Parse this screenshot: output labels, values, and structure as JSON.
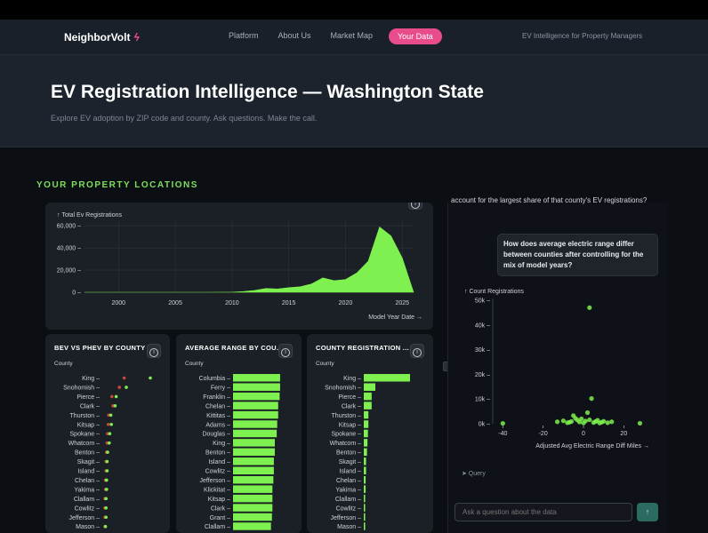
{
  "nav": {
    "brand": "NeighborVolt",
    "brand_icon": "lightning-bolt-icon",
    "links": [
      "Platform",
      "About Us",
      "Market Map"
    ],
    "active": "Your Data",
    "tagline": "EV Intelligence for Property Managers"
  },
  "hero": {
    "title": "EV Registration Intelligence — Washington State",
    "subtitle": "Explore EV adoption by ZIP code and county. Ask questions. Make the call."
  },
  "section_label": "YOUR PROPERTY LOCATIONS",
  "colors": {
    "accent_green": "#7ef04f",
    "accent_pink": "#e84c8b",
    "bev_red": "#c9463c",
    "phev_green": "#7ef04f",
    "send": "#2c6b5f"
  },
  "area_card": {
    "info_icon": "info-icon"
  },
  "bev_card": {
    "title": "BEV VS PHEV BY COUNTY",
    "axis_label": "County",
    "info_icon": "info-icon"
  },
  "range_card": {
    "title": "AVERAGE RANGE BY COU...",
    "axis_label": "County",
    "info_icon": "info-icon"
  },
  "count_card": {
    "title": "COUNTY REGISTRATION ...",
    "axis_label": "County",
    "info_icon": "info-icon"
  },
  "chat": {
    "prev_message": "account for the largest share of that county's EV registrations?",
    "question": "How does average electric range differ between counties after controlling for the mix of model years?",
    "query_link": "➤ Query",
    "input_placeholder": "Ask a question about the data",
    "send_icon": "arrow-up-icon"
  },
  "chart_data": [
    {
      "type": "area",
      "ylabel": "↑ Total Ev Registrations",
      "xlabel": "Model Year Date →",
      "x_ticks": [
        2000,
        2005,
        2010,
        2015,
        2020,
        2025
      ],
      "y_ticks": [
        0,
        20000,
        40000,
        60000
      ],
      "y_tick_labels": [
        "0",
        "20,000",
        "40,000",
        "60,000"
      ],
      "ylim": [
        0,
        65000
      ],
      "xlim": [
        1997,
        2026
      ],
      "x": [
        1997,
        2008,
        2010,
        2011,
        2012,
        2013,
        2014,
        2015,
        2016,
        2017,
        2018,
        2019,
        2020,
        2021,
        2022,
        2023,
        2024,
        2025,
        2026
      ],
      "values": [
        0,
        0,
        20,
        700,
        1700,
        3500,
        3000,
        4200,
        5000,
        7500,
        13000,
        10500,
        11500,
        17500,
        28000,
        59000,
        51000,
        31000,
        0
      ]
    },
    {
      "type": "scatter",
      "title": "BEV VS PHEV BY COUNTY",
      "categories": [
        "King",
        "Snohomish",
        "Pierce",
        "Clark",
        "Thurston",
        "Kitsap",
        "Spokane",
        "Whatcom",
        "Benton",
        "Skagit",
        "Island",
        "Chelan",
        "Yakima",
        "Clallam",
        "Cowlitz",
        "Jefferson",
        "Mason"
      ]
    },
    {
      "type": "bar",
      "title": "AVERAGE RANGE BY COU...",
      "categories": [
        "Columbia",
        "Ferry",
        "Franklin",
        "Chelan",
        "Kittitas",
        "Adams",
        "Douglas",
        "King",
        "Benton",
        "Island",
        "Cowlitz",
        "Jefferson",
        "Klickitat",
        "Kitsap",
        "Clark",
        "Grant",
        "Clallam"
      ]
    },
    {
      "type": "bar",
      "title": "COUNTY REGISTRATION ...",
      "categories": [
        "King",
        "Snohomish",
        "Pierce",
        "Clark",
        "Thurston",
        "Kitsap",
        "Spokane",
        "Whatcom",
        "Benton",
        "Skagit",
        "Island",
        "Chelan",
        "Yakima",
        "Clallam",
        "Cowlitz",
        "Jefferson",
        "Mason"
      ]
    },
    {
      "type": "scatter",
      "ylabel": "↑ Count Registrations",
      "xlabel": "Adjusted Avg Electric Range Diff Miles →",
      "x_ticks": [
        -40,
        -20,
        0,
        20
      ],
      "y_ticks": [
        0,
        10000,
        20000,
        30000,
        40000,
        50000
      ],
      "y_tick_labels": [
        "0k",
        "10k",
        "20k",
        "30k",
        "40k",
        "50k"
      ],
      "xlim": [
        -45,
        30
      ],
      "ylim": [
        0,
        50000
      ],
      "points": [
        [
          -40,
          150
        ],
        [
          -13,
          800
        ],
        [
          -10,
          1200
        ],
        [
          -8,
          400
        ],
        [
          -6,
          900
        ],
        [
          -5,
          3300
        ],
        [
          -4,
          2200
        ],
        [
          -3,
          1500
        ],
        [
          -2,
          700
        ],
        [
          -1,
          2000
        ],
        [
          0,
          300
        ],
        [
          1,
          1100
        ],
        [
          2,
          4500
        ],
        [
          3,
          1600
        ],
        [
          4,
          10200
        ],
        [
          5,
          500
        ],
        [
          6,
          900
        ],
        [
          7,
          1400
        ],
        [
          8,
          300
        ],
        [
          9,
          600
        ],
        [
          10,
          1000
        ],
        [
          12,
          400
        ],
        [
          3,
          47000
        ],
        [
          -7,
          600
        ],
        [
          28,
          200
        ],
        [
          14,
          800
        ]
      ]
    }
  ],
  "bev_values": [
    {
      "bev": 0.41,
      "phev": 0.9
    },
    {
      "bev": 0.32,
      "phev": 0.45
    },
    {
      "bev": 0.18,
      "phev": 0.26
    },
    {
      "bev": 0.2,
      "phev": 0.24
    },
    {
      "bev": 0.12,
      "phev": 0.16
    },
    {
      "bev": 0.11,
      "phev": 0.17
    },
    {
      "bev": 0.1,
      "phev": 0.14
    },
    {
      "bev": 0.09,
      "phev": 0.13
    },
    {
      "bev": 0.08,
      "phev": 0.1
    },
    {
      "bev": 0.07,
      "phev": 0.09
    },
    {
      "bev": 0.07,
      "phev": 0.09
    },
    {
      "bev": 0.06,
      "phev": 0.08
    },
    {
      "bev": 0.06,
      "phev": 0.08
    },
    {
      "bev": 0.05,
      "phev": 0.07
    },
    {
      "bev": 0.05,
      "phev": 0.07
    },
    {
      "bev": 0.05,
      "phev": 0.07
    },
    {
      "bev": 0.05,
      "phev": 0.06
    }
  ],
  "range_values": [
    0.98,
    0.98,
    0.97,
    0.94,
    0.94,
    0.92,
    0.91,
    0.87,
    0.87,
    0.85,
    0.85,
    0.84,
    0.82,
    0.82,
    0.82,
    0.81,
    0.79
  ],
  "count_values": [
    1.0,
    0.25,
    0.17,
    0.17,
    0.1,
    0.1,
    0.09,
    0.08,
    0.07,
    0.05,
    0.05,
    0.04,
    0.04,
    0.03,
    0.03,
    0.03,
    0.03
  ]
}
